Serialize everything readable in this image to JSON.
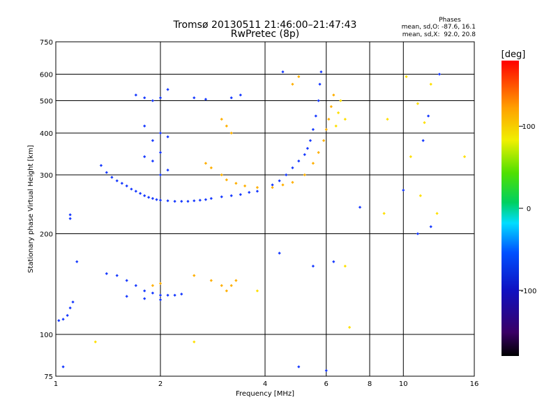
{
  "chart_data": {
    "type": "scatter",
    "title": "Tromsø 20130511 21:46:00–21:47:43",
    "subtitle": "RwPretec (8p)",
    "xlabel": "Frequency [MHz]",
    "ylabel": "Stationary phase Virtual Height [km]",
    "x_scale": "log",
    "y_scale": "log",
    "xlim": [
      1,
      16
    ],
    "ylim": [
      75,
      750
    ],
    "x_ticks": [
      1,
      2,
      4,
      6,
      8,
      10,
      16
    ],
    "y_ticks": [
      75,
      100,
      200,
      300,
      400,
      500,
      600,
      750
    ],
    "grid": true,
    "phase_stats": {
      "heading": "Phases",
      "line_o": "mean, sd,O: -87.6, 16.1",
      "line_x": "mean, sd,X:  92.0, 20.8"
    },
    "colorbar": {
      "label": "[deg]",
      "range": [
        -180,
        180
      ],
      "ticks": [
        -100,
        0,
        100
      ]
    },
    "series": [
      {
        "role": "O-mode F-region trace",
        "color": "#1a3cff",
        "points": [
          [
            1.35,
            320
          ],
          [
            1.4,
            305
          ],
          [
            1.45,
            295
          ],
          [
            1.5,
            288
          ],
          [
            1.55,
            283
          ],
          [
            1.6,
            278
          ],
          [
            1.65,
            272
          ],
          [
            1.7,
            268
          ],
          [
            1.75,
            264
          ],
          [
            1.8,
            260
          ],
          [
            1.85,
            257
          ],
          [
            1.9,
            255
          ],
          [
            1.95,
            253
          ],
          [
            2.0,
            252
          ],
          [
            2.1,
            251
          ],
          [
            2.2,
            250
          ],
          [
            2.3,
            250
          ],
          [
            2.4,
            250
          ],
          [
            2.5,
            251
          ],
          [
            2.6,
            252
          ],
          [
            2.7,
            253
          ],
          [
            2.8,
            255
          ],
          [
            3.0,
            258
          ],
          [
            3.2,
            260
          ],
          [
            3.4,
            262
          ],
          [
            3.6,
            266
          ],
          [
            3.8,
            268
          ],
          [
            4.2,
            280
          ],
          [
            4.4,
            288
          ],
          [
            4.6,
            300
          ],
          [
            4.8,
            315
          ],
          [
            5.0,
            330
          ],
          [
            5.2,
            345
          ],
          [
            5.3,
            360
          ],
          [
            5.4,
            380
          ],
          [
            5.5,
            410
          ],
          [
            5.6,
            450
          ],
          [
            5.7,
            500
          ],
          [
            5.75,
            560
          ],
          [
            5.8,
            610
          ]
        ]
      },
      {
        "role": "O-mode second-hop / multiple echoes",
        "color": "#1a3cff",
        "points": [
          [
            1.7,
            520
          ],
          [
            1.8,
            510
          ],
          [
            1.9,
            500
          ],
          [
            2.0,
            510
          ],
          [
            2.1,
            540
          ],
          [
            2.5,
            510
          ],
          [
            2.7,
            505
          ],
          [
            3.2,
            510
          ],
          [
            3.4,
            520
          ],
          [
            1.8,
            420
          ],
          [
            1.9,
            380
          ],
          [
            2.0,
            400
          ],
          [
            2.1,
            390
          ],
          [
            1.8,
            340
          ],
          [
            1.9,
            330
          ],
          [
            2.0,
            350
          ],
          [
            2.1,
            310
          ],
          [
            2.0,
            300
          ]
        ]
      },
      {
        "role": "O-mode E-region trace",
        "color": "#1a3cff",
        "points": [
          [
            1.02,
            110
          ],
          [
            1.05,
            111
          ],
          [
            1.08,
            114
          ],
          [
            1.1,
            120
          ],
          [
            1.12,
            125
          ],
          [
            1.15,
            165
          ],
          [
            1.4,
            152
          ],
          [
            1.5,
            150
          ],
          [
            1.6,
            145
          ],
          [
            1.7,
            140
          ],
          [
            1.8,
            135
          ],
          [
            1.9,
            133
          ],
          [
            2.0,
            131
          ],
          [
            2.1,
            131
          ],
          [
            2.2,
            131
          ],
          [
            2.3,
            132
          ],
          [
            1.6,
            130
          ],
          [
            1.8,
            128
          ],
          [
            2.0,
            127
          ]
        ]
      },
      {
        "role": "X-mode trace",
        "color": "#ffb000",
        "points": [
          [
            2.7,
            325
          ],
          [
            2.8,
            315
          ],
          [
            3.0,
            300
          ],
          [
            3.1,
            290
          ],
          [
            3.3,
            283
          ],
          [
            3.5,
            278
          ],
          [
            3.8,
            275
          ],
          [
            4.2,
            275
          ],
          [
            4.5,
            280
          ],
          [
            4.8,
            285
          ],
          [
            5.2,
            300
          ],
          [
            5.5,
            325
          ],
          [
            5.7,
            350
          ],
          [
            5.9,
            380
          ],
          [
            6.0,
            410
          ],
          [
            6.1,
            440
          ],
          [
            6.2,
            480
          ],
          [
            6.3,
            520
          ],
          [
            3.1,
            420
          ],
          [
            3.2,
            400
          ],
          [
            3.0,
            440
          ],
          [
            4.8,
            560
          ],
          [
            5.0,
            590
          ],
          [
            2.5,
            150
          ],
          [
            2.8,
            145
          ],
          [
            3.0,
            140
          ],
          [
            3.1,
            135
          ],
          [
            3.2,
            140
          ],
          [
            3.3,
            145
          ],
          [
            1.9,
            140
          ],
          [
            2.0,
            142
          ]
        ]
      },
      {
        "role": "scattered echoes",
        "color": "#ffe000",
        "points": [
          [
            6.5,
            460
          ],
          [
            6.6,
            500
          ],
          [
            6.4,
            420
          ],
          [
            6.8,
            440
          ],
          [
            10.2,
            590
          ],
          [
            11.0,
            490
          ],
          [
            11.5,
            430
          ],
          [
            12.0,
            560
          ],
          [
            15.0,
            340
          ],
          [
            10.5,
            340
          ],
          [
            11.2,
            260
          ],
          [
            12.5,
            230
          ],
          [
            9.0,
            440
          ],
          [
            8.8,
            230
          ],
          [
            6.8,
            160
          ],
          [
            7.0,
            105
          ],
          [
            3.8,
            135
          ],
          [
            1.3,
            95
          ],
          [
            2.5,
            95
          ]
        ]
      },
      {
        "role": "scattered echoes",
        "color": "#1a3cff",
        "points": [
          [
            6.0,
            78
          ],
          [
            5.0,
            80
          ],
          [
            11.0,
            200
          ],
          [
            12.0,
            210
          ],
          [
            10.0,
            270
          ],
          [
            11.4,
            380
          ],
          [
            11.8,
            450
          ],
          [
            12.7,
            600
          ],
          [
            7.5,
            240
          ],
          [
            6.3,
            165
          ],
          [
            5.5,
            160
          ],
          [
            4.4,
            175
          ],
          [
            4.5,
            610
          ],
          [
            1.1,
            228
          ],
          [
            1.1,
            222
          ],
          [
            1.05,
            80
          ]
        ]
      }
    ]
  }
}
